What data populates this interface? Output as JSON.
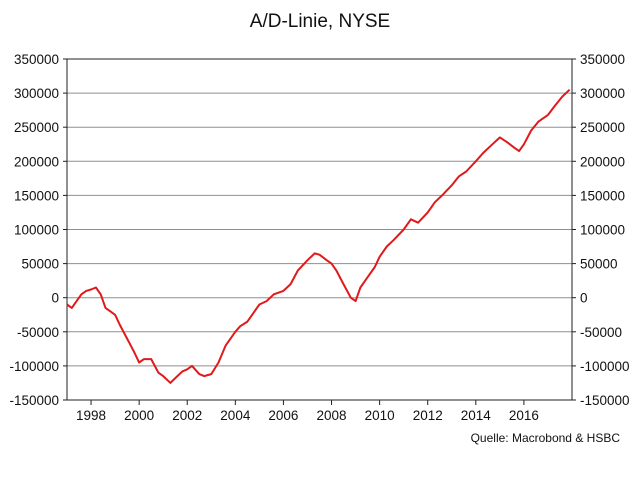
{
  "chart_data": {
    "type": "line",
    "title": "A/D-Linie, NYSE",
    "source": "Quelle: Macrobond & HSBC",
    "xlabel": "",
    "ylabel": "",
    "xlim": [
      1997.0,
      2018.0
    ],
    "ylim": [
      -150000,
      350000
    ],
    "grid": true,
    "yticks": [
      350000,
      300000,
      250000,
      200000,
      150000,
      100000,
      50000,
      0,
      -50000,
      -100000,
      -150000
    ],
    "ytick_labels": [
      "350000",
      "300000",
      "250000",
      "200000",
      "150000",
      "100000",
      "50000",
      "0",
      "-50000",
      "-100000",
      "-150000"
    ],
    "xticks": [
      1998,
      2000,
      2002,
      2004,
      2006,
      2008,
      2010,
      2012,
      2014,
      2016
    ],
    "xtick_labels": [
      "1998",
      "2000",
      "2002",
      "2004",
      "2006",
      "2008",
      "2010",
      "2012",
      "2014",
      "2016"
    ],
    "line_color": "#e0191b",
    "series": [
      {
        "x": [
          1997.0,
          1997.2,
          1997.4,
          1997.6,
          1997.8,
          1998.0,
          1998.2,
          1998.4,
          1998.6,
          1998.8,
          1999.0,
          1999.2,
          1999.5,
          1999.8,
          2000.0,
          2000.2,
          2000.5,
          2000.8,
          2001.0,
          2001.3,
          2001.5,
          2001.8,
          2002.0,
          2002.2,
          2002.5,
          2002.7,
          2003.0,
          2003.3,
          2003.6,
          2004.0,
          2004.2,
          2004.5,
          2004.8,
          2005.0,
          2005.3,
          2005.6,
          2006.0,
          2006.3,
          2006.6,
          2007.0,
          2007.3,
          2007.5,
          2007.8,
          2008.0,
          2008.2,
          2008.5,
          2008.8,
          2009.0,
          2009.2,
          2009.5,
          2009.8,
          2010.0,
          2010.3,
          2010.6,
          2011.0,
          2011.3,
          2011.6,
          2012.0,
          2012.3,
          2012.6,
          2013.0,
          2013.3,
          2013.6,
          2014.0,
          2014.3,
          2014.6,
          2015.0,
          2015.3,
          2015.6,
          2015.8,
          2016.0,
          2016.3,
          2016.6,
          2017.0,
          2017.3,
          2017.6,
          2017.9
        ],
        "y": [
          -10000,
          -15000,
          -5000,
          5000,
          10000,
          12000,
          15000,
          5000,
          -15000,
          -20000,
          -25000,
          -40000,
          -60000,
          -80000,
          -95000,
          -90000,
          -90000,
          -110000,
          -115000,
          -125000,
          -118000,
          -108000,
          -105000,
          -100000,
          -112000,
          -115000,
          -112000,
          -95000,
          -70000,
          -50000,
          -42000,
          -35000,
          -20000,
          -10000,
          -5000,
          5000,
          10000,
          20000,
          40000,
          55000,
          65000,
          63000,
          55000,
          50000,
          40000,
          20000,
          0,
          -5000,
          15000,
          30000,
          45000,
          60000,
          75000,
          85000,
          100000,
          115000,
          110000,
          125000,
          140000,
          150000,
          165000,
          178000,
          185000,
          200000,
          212000,
          222000,
          235000,
          228000,
          220000,
          215000,
          225000,
          245000,
          258000,
          268000,
          282000,
          295000,
          305000
        ]
      }
    ]
  }
}
